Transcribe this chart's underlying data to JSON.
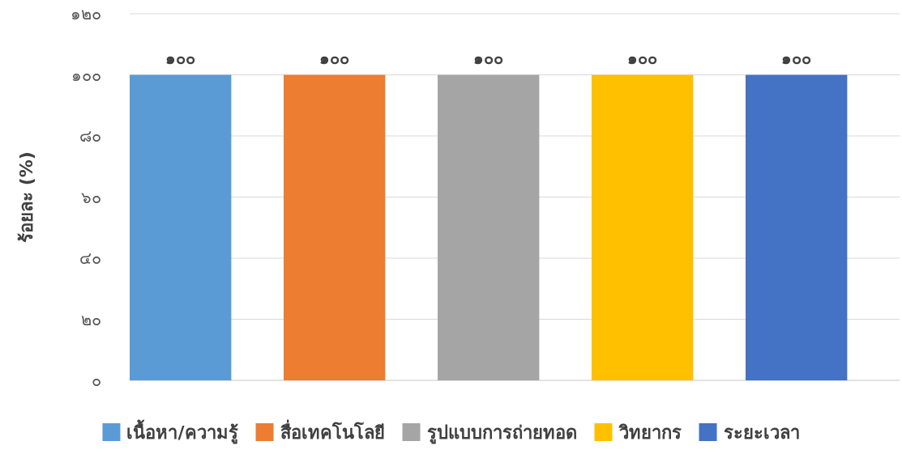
{
  "chart_data": {
    "type": "bar",
    "ylabel": "ร้อยละ (%)",
    "categories": [
      null
    ],
    "series": [
      {
        "name": "เนื้อหา/ความรู้",
        "color": "#5b9bd5",
        "values": [
          100
        ],
        "value_labels": [
          "๑๐๐"
        ]
      },
      {
        "name": "สื่อเทคโนโลยี",
        "color": "#ed7d31",
        "values": [
          100
        ],
        "value_labels": [
          "๑๐๐"
        ]
      },
      {
        "name": "รูปแบบการถ่ายทอด",
        "color": "#a5a5a5",
        "values": [
          100
        ],
        "value_labels": [
          "๑๐๐"
        ]
      },
      {
        "name": "วิทยากร",
        "color": "#ffc000",
        "values": [
          100
        ],
        "value_labels": [
          "๑๐๐"
        ]
      },
      {
        "name": "ระยะเวลา",
        "color": "#4472c4",
        "values": [
          100
        ],
        "value_labels": [
          "๑๐๐"
        ]
      }
    ],
    "ylim": [
      0,
      120
    ],
    "yticks": [
      {
        "value": 0,
        "label": "๐"
      },
      {
        "value": 20,
        "label": "๒๐"
      },
      {
        "value": 40,
        "label": "๔๐"
      },
      {
        "value": 60,
        "label": "๖๐"
      },
      {
        "value": 80,
        "label": "๘๐"
      },
      {
        "value": 100,
        "label": "๑๐๐"
      },
      {
        "value": 120,
        "label": "๑๒๐"
      }
    ],
    "grid": "y",
    "legend": "bottom"
  }
}
